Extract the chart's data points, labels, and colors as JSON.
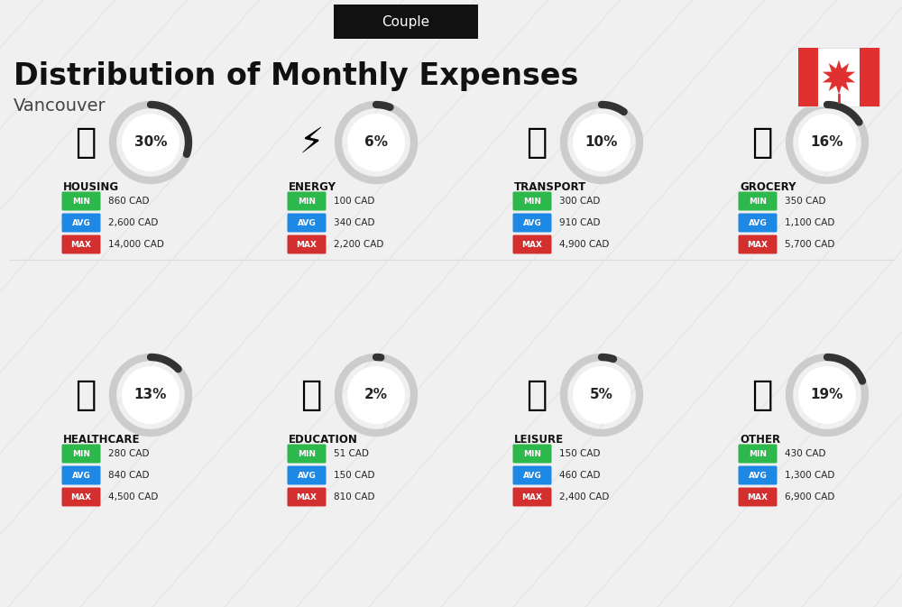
{
  "title": "Distribution of Monthly Expenses",
  "subtitle": "Vancouver",
  "tag": "Couple",
  "bg_color": "#f0f0f0",
  "categories": [
    {
      "name": "HOUSING",
      "pct": 30,
      "min": "860 CAD",
      "avg": "2,600 CAD",
      "max": "14,000 CAD",
      "icon": "housing",
      "col": 0,
      "row": 0
    },
    {
      "name": "ENERGY",
      "pct": 6,
      "min": "100 CAD",
      "avg": "340 CAD",
      "max": "2,200 CAD",
      "icon": "energy",
      "col": 1,
      "row": 0
    },
    {
      "name": "TRANSPORT",
      "pct": 10,
      "min": "300 CAD",
      "avg": "910 CAD",
      "max": "4,900 CAD",
      "icon": "transport",
      "col": 2,
      "row": 0
    },
    {
      "name": "GROCERY",
      "pct": 16,
      "min": "350 CAD",
      "avg": "1,100 CAD",
      "max": "5,700 CAD",
      "icon": "grocery",
      "col": 3,
      "row": 0
    },
    {
      "name": "HEALTHCARE",
      "pct": 13,
      "min": "280 CAD",
      "avg": "840 CAD",
      "max": "4,500 CAD",
      "icon": "healthcare",
      "col": 0,
      "row": 1
    },
    {
      "name": "EDUCATION",
      "pct": 2,
      "min": "51 CAD",
      "avg": "150 CAD",
      "max": "810 CAD",
      "icon": "education",
      "col": 1,
      "row": 1
    },
    {
      "name": "LEISURE",
      "pct": 5,
      "min": "150 CAD",
      "avg": "460 CAD",
      "max": "2,400 CAD",
      "icon": "leisure",
      "col": 2,
      "row": 1
    },
    {
      "name": "OTHER",
      "pct": 19,
      "min": "430 CAD",
      "avg": "1,300 CAD",
      "max": "6,900 CAD",
      "icon": "other",
      "col": 3,
      "row": 1
    }
  ],
  "min_color": "#2db84b",
  "avg_color": "#1e88e5",
  "max_color": "#d32f2f",
  "arc_color": "#333333",
  "arc_bg_color": "#cccccc",
  "label_color": "#ffffff",
  "title_color": "#111111",
  "sub_color": "#444444",
  "tag_bg": "#111111",
  "tag_color": "#ffffff"
}
